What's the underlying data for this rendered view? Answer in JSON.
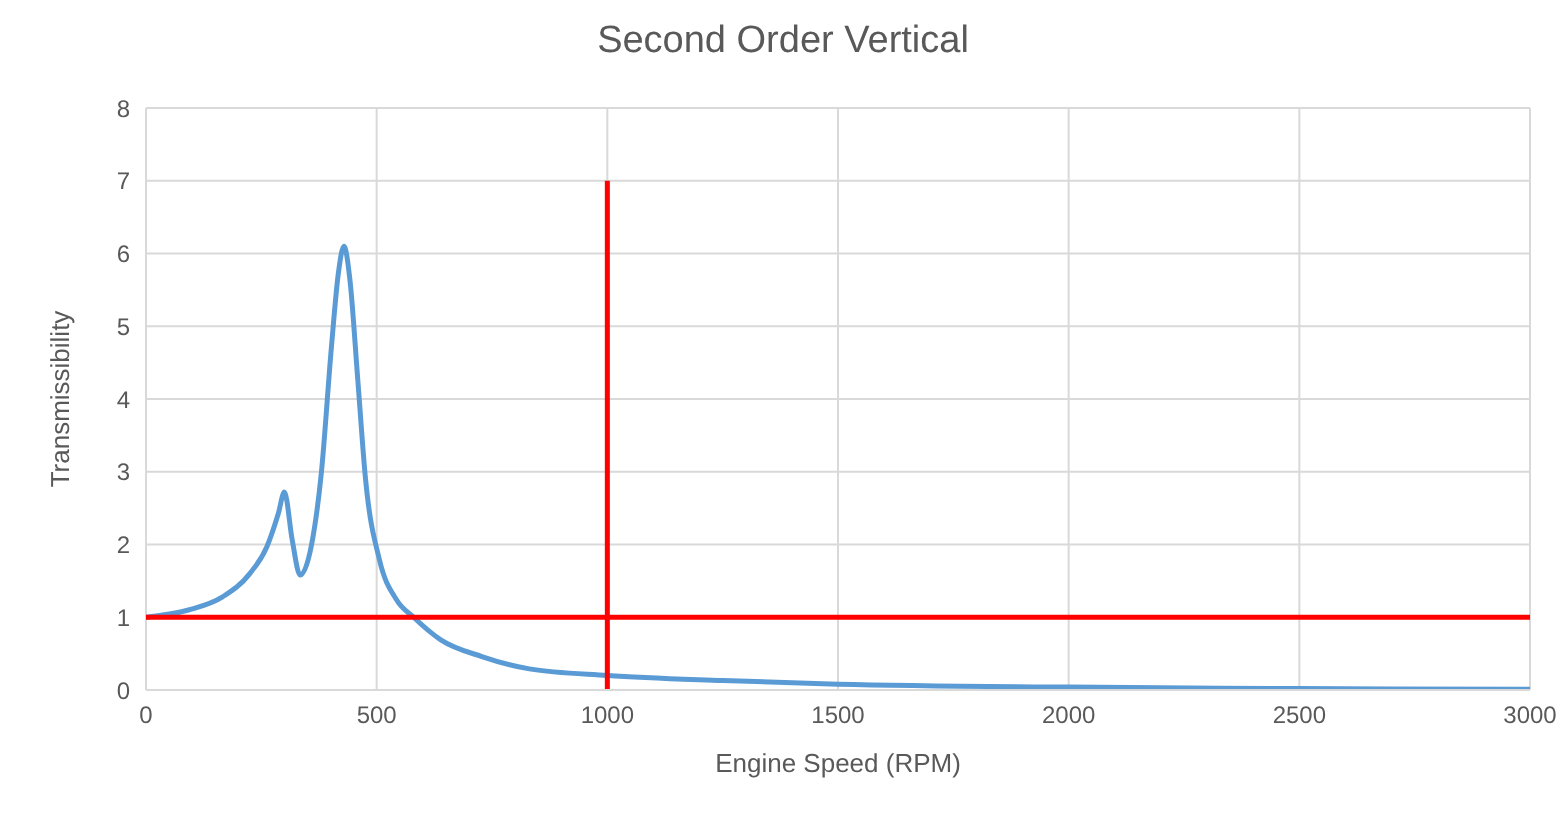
{
  "chart_data": {
    "type": "line",
    "title": "Second Order Vertical",
    "xlabel": "Engine Speed (RPM)",
    "ylabel": "Transmissibility",
    "xlim": [
      0,
      3000
    ],
    "xticks": [
      0,
      500,
      1000,
      1500,
      2000,
      2500,
      3000
    ],
    "ylim": [
      0,
      8
    ],
    "yticks": [
      0,
      1,
      2,
      3,
      4,
      5,
      6,
      7,
      8
    ],
    "grid": true,
    "marker": "none",
    "line_style": "solid",
    "series": [
      {
        "color": "#5b9bd5",
        "x": [
          0,
          92,
          166,
          225,
          262,
          287,
          300,
          317,
          334,
          358,
          380,
          402,
          417,
          429,
          442,
          459,
          476,
          506,
          543,
          580,
          639,
          728,
          831,
          1000,
          1250,
          1500,
          2000,
          2500,
          3000
        ],
        "values": [
          1,
          1.1,
          1.28,
          1.6,
          1.97,
          2.43,
          2.72,
          2.06,
          1.58,
          1.97,
          2.98,
          4.72,
          5.73,
          6.1,
          5.64,
          4.27,
          2.89,
          1.79,
          1.24,
          1.0,
          0.69,
          0.46,
          0.29,
          0.2,
          0.13,
          0.08,
          0.04,
          0.02,
          0.01
        ]
      },
      {
        "type": "line",
        "color": "#ff0000",
        "x": [
          1000,
          1000
        ],
        "values": [
          0,
          7
        ]
      },
      {
        "type": "line",
        "color": "#ff0000",
        "x": [
          0,
          3000
        ],
        "values": [
          1,
          1
        ]
      }
    ]
  }
}
